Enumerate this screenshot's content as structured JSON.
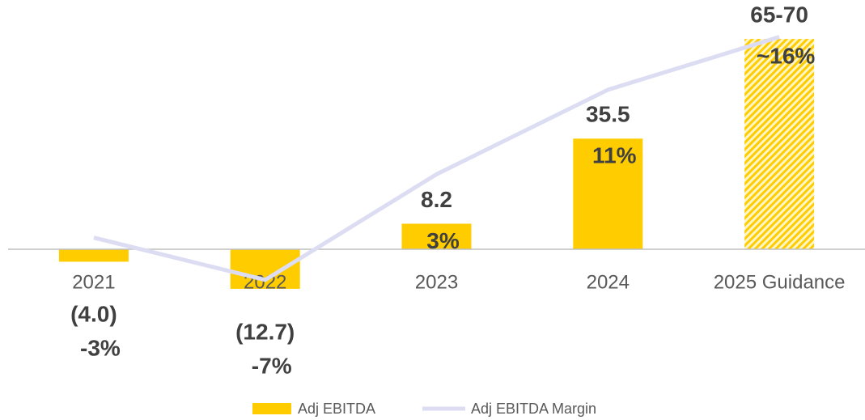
{
  "chart_data": {
    "type": "bar_line",
    "categories": [
      "2021",
      "2022",
      "2023",
      "2024",
      "2025 Guidance"
    ],
    "series": [
      {
        "name": "Adj EBITDA",
        "color": "#ffcc00",
        "type": "bar",
        "values": [
          -4.0,
          -12.7,
          8.2,
          35.5,
          67.5
        ],
        "value_labels": [
          "(4.0)",
          "(12.7)",
          "8.2",
          "35.5",
          "65-70"
        ],
        "hatched": [
          false,
          false,
          false,
          false,
          true
        ]
      },
      {
        "name": "Adj EBITDA Margin",
        "color": "#dcdcf2",
        "type": "line",
        "axis": "y2",
        "values": [
          -3,
          -7,
          3,
          11,
          16
        ],
        "value_labels": [
          "-3%",
          "-7%",
          "3%",
          "11%",
          "~16%"
        ]
      }
    ],
    "ylim": [
      -20,
      80
    ],
    "y2lim": [
      -10,
      19.5
    ],
    "legend": "bottom"
  }
}
